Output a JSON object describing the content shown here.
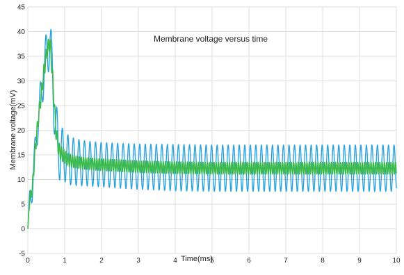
{
  "chart_data": {
    "type": "line",
    "title": "Membrane voltage versus time",
    "xlabel": "Time(ms)",
    "ylabel": "Membrane voltage(mV)",
    "xlim": [
      0,
      10
    ],
    "ylim": [
      -5,
      45
    ],
    "xticks": [
      0,
      1,
      2,
      3,
      4,
      5,
      6,
      7,
      8,
      9,
      10
    ],
    "yticks": [
      -5,
      0,
      5,
      10,
      15,
      20,
      25,
      30,
      35,
      40,
      45
    ],
    "grid": true,
    "series": [
      {
        "color": "#29a3e0",
        "x": [
          0,
          0.05,
          0.12,
          0.2,
          0.28,
          0.36,
          0.44,
          0.52,
          0.6,
          0.68,
          0.76,
          0.84,
          0.92,
          1.0,
          1.1,
          1.25,
          1.5,
          2,
          3,
          4,
          5,
          6,
          7,
          8,
          9,
          10
        ],
        "center": [
          0,
          6,
          8,
          16,
          22,
          27,
          32,
          36,
          38,
          30,
          20,
          16,
          15.2,
          14.6,
          14.0,
          13.6,
          13.3,
          13.0,
          12.6,
          12.4,
          12.3,
          12.3,
          12.3,
          12.3,
          12.3,
          12.3
        ],
        "amplitude": [
          0,
          2,
          2.5,
          3,
          3.5,
          4,
          4.5,
          5,
          5.5,
          6,
          6,
          6,
          5.5,
          5,
          5,
          4.8,
          4.6,
          4.5,
          4.6,
          4.7,
          4.7,
          4.7,
          4.7,
          4.7,
          4.7,
          4.7
        ],
        "period_ms": 0.15
      },
      {
        "color": "#3dba4e",
        "x": [
          0,
          0.05,
          0.12,
          0.2,
          0.28,
          0.36,
          0.44,
          0.52,
          0.6,
          0.68,
          0.76,
          0.84,
          0.92,
          1.0,
          1.1,
          1.25,
          1.5,
          2,
          3,
          4,
          5,
          6,
          7,
          8,
          9,
          10
        ],
        "center": [
          0,
          6,
          8,
          16,
          22,
          27,
          32,
          36,
          38,
          30,
          20,
          16,
          15.2,
          14.6,
          14.0,
          13.6,
          13.3,
          13.0,
          12.6,
          12.4,
          12.3,
          12.3,
          12.3,
          12.3,
          12.3,
          12.3
        ],
        "amplitude": [
          0,
          1,
          1.2,
          1.5,
          1.5,
          1.5,
          1.6,
          1.6,
          1.6,
          1.6,
          1.6,
          1.5,
          1.4,
          1.3,
          1.3,
          1.2,
          1.2,
          1.2,
          1.2,
          1.2,
          1.2,
          1.2,
          1.2,
          1.2,
          1.2,
          1.2
        ],
        "period_ms": 0.06
      }
    ]
  }
}
